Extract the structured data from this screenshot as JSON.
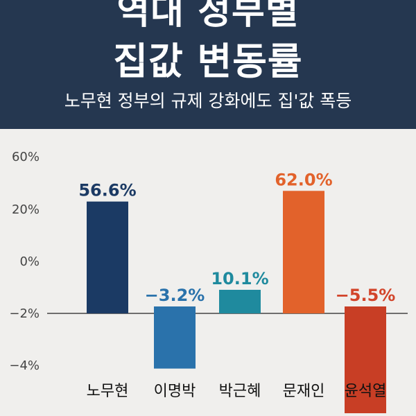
{
  "header": {
    "title_line1": "역대 정부별",
    "title_line2": "집값 변동률",
    "subtitle": "노무현 정부의 규제 강화에도 집'값 폭등"
  },
  "colors": {
    "header_bg": "#253750",
    "background": "#f0efed"
  },
  "chart_data": {
    "type": "bar",
    "categories": [
      "노무현",
      "이명박",
      "박근혜",
      "문재인",
      "윤석열"
    ],
    "values": [
      56.6,
      -3.2,
      10.1,
      62.0,
      -5.5
    ],
    "data_labels": [
      "56.6%",
      "−3.2%",
      "10.1%",
      "62.0%",
      "−5.5%"
    ],
    "bar_colors": [
      "#1b3a64",
      "#2a72ab",
      "#1f8a9e",
      "#e2622b",
      "#c83e25"
    ],
    "label_colors": [
      "#1b3a64",
      "#2a72ab",
      "#1f8a9e",
      "#e2622b",
      "#d2442a"
    ],
    "yticks": [
      "60%",
      "20%",
      "0%",
      "−2%",
      "−4%"
    ],
    "grid": false
  }
}
